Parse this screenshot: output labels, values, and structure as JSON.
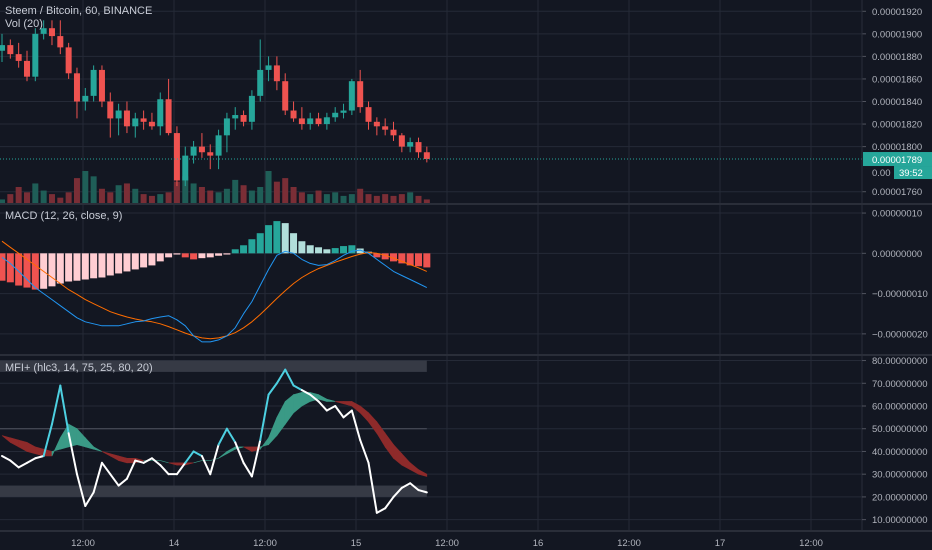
{
  "header": {
    "title": "Steem / Bitcoin, 60, BINANCE",
    "vol_label": "Vol (20)"
  },
  "colors": {
    "background": "#131722",
    "grid": "#252a37",
    "bull": "#26a69a",
    "bear": "#ef5350",
    "macd_line": "#2196f3",
    "signal_line": "#ff6d00",
    "mfi_line": "#ffffff",
    "mfi_cyan": "#4dd0e1",
    "cloud_bull": "#3a9a86",
    "cloud_bear": "#8e2a2a"
  },
  "price_axis": {
    "ticks": [
      "0.00001920",
      "0.00001900",
      "0.00001880",
      "0.00001860",
      "0.00001840",
      "0.00001820",
      "0.00001800",
      "0.00001760"
    ],
    "current_price": "0.00001789",
    "countdown": "39:52",
    "partial_label": "0.00"
  },
  "macd": {
    "title": "MACD (12, 26, close, 9)",
    "ticks": [
      "0.00000010",
      "0.00000000",
      "−0.00000010",
      "−0.00000020"
    ]
  },
  "mfi": {
    "title": "MFI+ (hlc3, 14, 75, 25, 80, 20)",
    "ticks": [
      "80.00000000",
      "70.00000000",
      "60.00000000",
      "50.00000000",
      "40.00000000",
      "30.00000000",
      "20.00000000",
      "10.00000000"
    ]
  },
  "time_axis": {
    "ticks": [
      "12:00",
      "14",
      "12:00",
      "15",
      "12:00",
      "16",
      "12:00",
      "17",
      "12:00"
    ]
  },
  "chart_data": [
    {
      "type": "candlestick",
      "title": "Steem / Bitcoin, 60, BINANCE",
      "ylim": [
        1.75e-05,
        1.93e-05
      ],
      "current_price": 1.789e-05,
      "candles": [
        [
          1.885e-05,
          1.9e-05,
          1.875e-05,
          1.89e-05
        ],
        [
          1.89e-05,
          1.895e-05,
          1.878e-05,
          1.882e-05
        ],
        [
          1.882e-05,
          1.892e-05,
          1.87e-05,
          1.876e-05
        ],
        [
          1.876e-05,
          1.885e-05,
          1.858e-05,
          1.862e-05
        ],
        [
          1.862e-05,
          1.905e-05,
          1.858e-05,
          1.9e-05
        ],
        [
          1.9e-05,
          1.912e-05,
          1.895e-05,
          1.905e-05
        ],
        [
          1.905e-05,
          1.912e-05,
          1.89e-05,
          1.898e-05
        ],
        [
          1.898e-05,
          1.912e-05,
          1.882e-05,
          1.888e-05
        ],
        [
          1.888e-05,
          1.892e-05,
          1.86e-05,
          1.865e-05
        ],
        [
          1.865e-05,
          1.87e-05,
          1.825e-05,
          1.84e-05
        ],
        [
          1.84e-05,
          1.852e-05,
          1.832e-05,
          1.845e-05
        ],
        [
          1.845e-05,
          1.872e-05,
          1.84e-05,
          1.868e-05
        ],
        [
          1.868e-05,
          1.872e-05,
          1.835e-05,
          1.84e-05
        ],
        [
          1.84e-05,
          1.848e-05,
          1.808e-05,
          1.825e-05
        ],
        [
          1.825e-05,
          1.838e-05,
          1.81e-05,
          1.832e-05
        ],
        [
          1.832e-05,
          1.84e-05,
          1.812e-05,
          1.818e-05
        ],
        [
          1.818e-05,
          1.83e-05,
          1.808e-05,
          1.825e-05
        ],
        [
          1.825e-05,
          1.832e-05,
          1.815e-05,
          1.822e-05
        ],
        [
          1.822e-05,
          1.83e-05,
          1.815e-05,
          1.818e-05
        ],
        [
          1.818e-05,
          1.848e-05,
          1.81e-05,
          1.842e-05
        ],
        [
          1.842e-05,
          1.86e-05,
          1.81e-05,
          1.812e-05
        ],
        [
          1.812e-05,
          1.818e-05,
          1.765e-05,
          1.77e-05
        ],
        [
          1.77e-05,
          1.8e-05,
          1.765e-05,
          1.792e-05
        ],
        [
          1.792e-05,
          1.805e-05,
          1.785e-05,
          1.8e-05
        ],
        [
          1.8e-05,
          1.812e-05,
          1.79e-05,
          1.795e-05
        ],
        [
          1.795e-05,
          1.802e-05,
          1.78e-05,
          1.792e-05
        ],
        [
          1.792e-05,
          1.815e-05,
          1.78e-05,
          1.81e-05
        ],
        [
          1.81e-05,
          1.83e-05,
          1.795e-05,
          1.825e-05
        ],
        [
          1.825e-05,
          1.835e-05,
          1.815e-05,
          1.828e-05
        ],
        [
          1.828e-05,
          1.832e-05,
          1.818e-05,
          1.822e-05
        ],
        [
          1.822e-05,
          1.85e-05,
          1.815e-05,
          1.845e-05
        ],
        [
          1.845e-05,
          1.895e-05,
          1.84e-05,
          1.868e-05
        ],
        [
          1.868e-05,
          1.88e-05,
          1.858e-05,
          1.872e-05
        ],
        [
          1.872e-05,
          1.88e-05,
          1.85e-05,
          1.858e-05
        ],
        [
          1.858e-05,
          1.865e-05,
          1.828e-05,
          1.832e-05
        ],
        [
          1.832e-05,
          1.84e-05,
          1.822e-05,
          1.825e-05
        ],
        [
          1.825e-05,
          1.835e-05,
          1.815e-05,
          1.82e-05
        ],
        [
          1.82e-05,
          1.83e-05,
          1.815e-05,
          1.825e-05
        ],
        [
          1.825e-05,
          1.83e-05,
          1.818e-05,
          1.82e-05
        ],
        [
          1.82e-05,
          1.83e-05,
          1.815e-05,
          1.826e-05
        ],
        [
          1.826e-05,
          1.835e-05,
          1.822e-05,
          1.83e-05
        ],
        [
          1.83e-05,
          1.838e-05,
          1.825e-05,
          1.832e-05
        ],
        [
          1.832e-05,
          1.86e-05,
          1.828e-05,
          1.858e-05
        ],
        [
          1.858e-05,
          1.868e-05,
          1.83e-05,
          1.835e-05
        ],
        [
          1.835e-05,
          1.84e-05,
          1.815e-05,
          1.822e-05
        ],
        [
          1.822e-05,
          1.826e-05,
          1.81e-05,
          1.818e-05
        ],
        [
          1.818e-05,
          1.825e-05,
          1.81e-05,
          1.815e-05
        ],
        [
          1.815e-05,
          1.822e-05,
          1.805e-05,
          1.81e-05
        ],
        [
          1.81e-05,
          1.812e-05,
          1.795e-05,
          1.8e-05
        ],
        [
          1.8e-05,
          1.808e-05,
          1.795e-05,
          1.804e-05
        ],
        [
          1.804e-05,
          1.808e-05,
          1.79e-05,
          1.795e-05
        ],
        [
          1.795e-05,
          1.8e-05,
          1.786e-05,
          1.789e-05
        ]
      ],
      "volume": [
        2,
        5,
        9,
        6,
        11,
        7,
        5,
        3,
        6,
        14,
        18,
        15,
        8,
        6,
        10,
        11,
        8,
        5,
        4,
        5,
        6,
        12,
        15,
        11,
        9,
        7,
        6,
        8,
        13,
        10,
        7,
        9,
        18,
        12,
        14,
        9,
        6,
        5,
        7,
        5,
        6,
        4,
        5,
        8,
        5,
        4,
        5,
        4,
        5,
        6,
        4,
        2
      ]
    },
    {
      "type": "bar",
      "title": "MACD (12, 26, close, 9)",
      "ylim": [
        -2.5e-07,
        1.2e-07
      ],
      "histogram": [
        -6.8e-08,
        -7.2e-08,
        -8e-08,
        -8.5e-08,
        -9e-08,
        -8.8e-08,
        -8.2e-08,
        -7.5e-08,
        -7e-08,
        -6.8e-08,
        -6.5e-08,
        -6.2e-08,
        -6e-08,
        -5.5e-08,
        -5e-08,
        -4.5e-08,
        -4e-08,
        -3.5e-08,
        -3e-08,
        -2e-08,
        -1e-08,
        -3e-09,
        -1e-08,
        -1.5e-08,
        -1.2e-08,
        -1e-08,
        -6e-09,
        -3e-09,
        1e-08,
        2e-08,
        3.5e-08,
        5e-08,
        7e-08,
        8e-08,
        7.5e-08,
        5e-08,
        3e-08,
        2e-08,
        1.5e-08,
        1e-08,
        1.3e-08,
        1.8e-08,
        2e-08,
        1.2e-08,
        4e-09,
        -1e-08,
        -1.5e-08,
        -2e-08,
        -2.5e-08,
        -3e-08,
        -3.2e-08,
        -3.5e-08
      ],
      "macd_line": [
        -1e-08,
        -2.5e-08,
        -4.5e-08,
        -6.5e-08,
        -8.5e-08,
        -1e-07,
        -1.15e-07,
        -1.3e-07,
        -1.45e-07,
        -1.6e-07,
        -1.7e-07,
        -1.75e-07,
        -1.8e-07,
        -1.8e-07,
        -1.8e-07,
        -1.75e-07,
        -1.7e-07,
        -1.68e-07,
        -1.62e-07,
        -1.58e-07,
        -1.55e-07,
        -1.65e-07,
        -1.8e-07,
        -2.05e-07,
        -2.2e-07,
        -2.2e-07,
        -2.15e-07,
        -2.05e-07,
        -1.85e-07,
        -1.5e-07,
        -1.2e-07,
        -8e-08,
        -4e-08,
        -5e-09,
        5e-09,
        0,
        -1.5e-08,
        -2.5e-08,
        -3e-08,
        -2.8e-08,
        -1.8e-08,
        -5e-09,
        5e-09,
        8e-09,
        0,
        -1.5e-08,
        -3e-08,
        -4.5e-08,
        -5.5e-08,
        -6.5e-08,
        -7.5e-08,
        -8.5e-08
      ],
      "signal_line": [
        3e-08,
        1.5e-08,
        0,
        -1.5e-08,
        -3e-08,
        -4.5e-08,
        -6e-08,
        -7.5e-08,
        -9e-08,
        -1.02e-07,
        -1.15e-07,
        -1.25e-07,
        -1.35e-07,
        -1.45e-07,
        -1.52e-07,
        -1.58e-07,
        -1.63e-07,
        -1.67e-07,
        -1.7e-07,
        -1.75e-07,
        -1.82e-07,
        -1.9e-07,
        -1.98e-07,
        -2.05e-07,
        -2.1e-07,
        -2.12e-07,
        -2.1e-07,
        -2.05e-07,
        -1.97e-07,
        -1.85e-07,
        -1.7e-07,
        -1.52e-07,
        -1.32e-07,
        -1.12e-07,
        -9.3e-08,
        -7.5e-08,
        -6e-08,
        -4.8e-08,
        -3.8e-08,
        -3e-08,
        -2.2e-08,
        -1.5e-08,
        -8e-09,
        -2e-09,
        2e-09,
        0,
        -5e-09,
        -1.2e-08,
        -2e-08,
        -2.8e-08,
        -3.6e-08,
        -4.5e-08
      ]
    },
    {
      "type": "line",
      "title": "MFI+ (hlc3, 14, 75, 25, 80, 20)",
      "ylim": [
        5,
        82
      ],
      "upper_band": [
        75,
        80
      ],
      "lower_band": [
        20,
        25
      ],
      "mid_level": 50,
      "mfi": [
        38,
        36,
        33,
        35,
        37,
        38,
        52,
        69,
        48,
        30,
        16,
        22,
        35,
        30,
        25,
        28,
        36,
        35,
        37,
        34,
        30,
        30,
        35,
        40,
        38,
        30,
        43,
        50,
        44,
        35,
        29,
        45,
        65,
        70,
        76,
        69,
        67,
        65,
        62,
        58,
        60,
        55,
        58,
        45,
        35,
        13,
        15,
        20,
        24,
        26,
        23,
        22
      ],
      "cloud_fast": [
        47,
        44,
        42,
        40,
        39,
        38,
        38,
        46,
        52,
        50,
        46,
        42,
        40,
        38,
        36,
        35,
        35,
        36,
        36,
        36,
        35,
        34,
        34,
        35,
        36,
        36,
        37,
        40,
        42,
        42,
        40,
        41,
        46,
        55,
        62,
        65,
        66,
        66,
        65,
        63,
        62,
        61,
        60,
        57,
        53,
        48,
        42,
        37,
        34,
        32,
        30,
        29
      ],
      "cloud_slow": [
        47,
        46,
        45,
        44,
        42,
        41,
        40,
        41,
        42,
        43,
        42,
        41,
        40,
        39,
        38,
        37,
        37,
        36,
        36,
        36,
        35,
        35,
        35,
        35,
        36,
        36,
        37,
        39,
        41,
        42,
        42,
        42,
        43,
        47,
        52,
        57,
        60,
        62,
        63,
        62,
        62,
        62,
        62,
        60,
        57,
        53,
        48,
        43,
        39,
        35,
        32,
        30
      ]
    }
  ]
}
